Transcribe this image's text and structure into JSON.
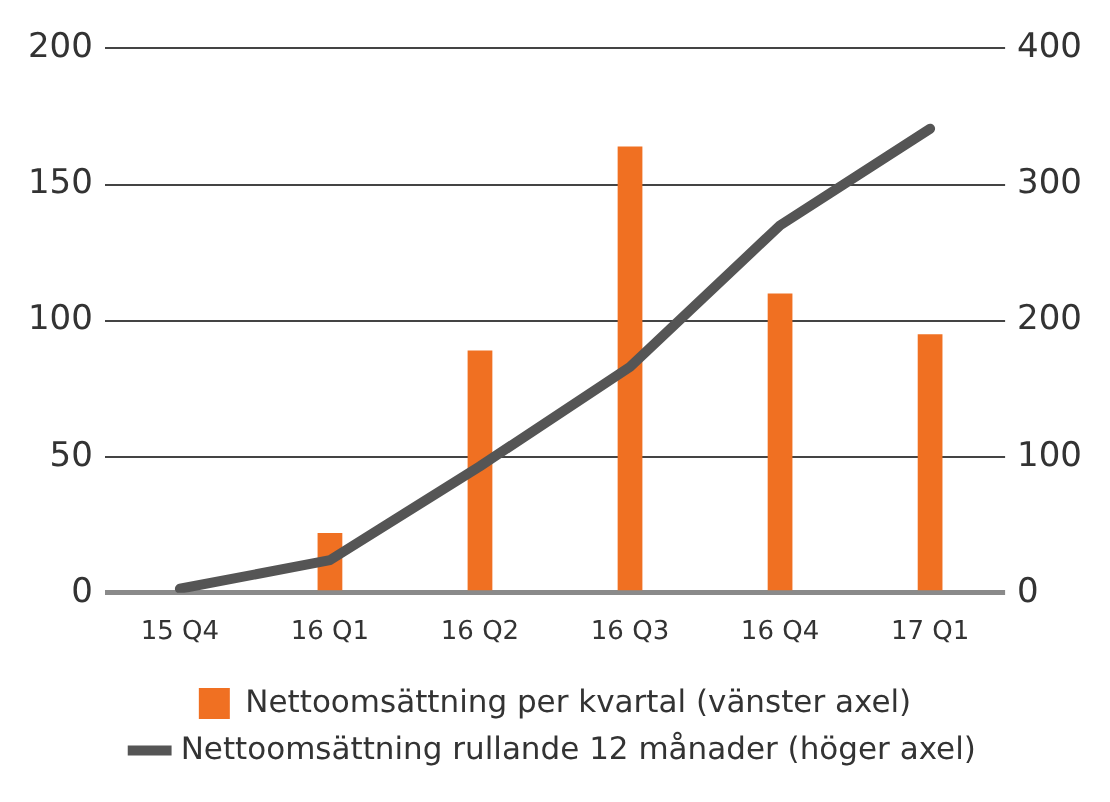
{
  "chart_data": {
    "type": "bar",
    "categories": [
      "15 Q4",
      "16 Q1",
      "16 Q2",
      "16 Q3",
      "16 Q4",
      "17 Q1"
    ],
    "series": [
      {
        "name": "Nettoomsättning per kvartal (vänster axel)",
        "color": "#f07022",
        "values": [
          0,
          22,
          89,
          164,
          110,
          95
        ]
      },
      {
        "name": "Nettoomsättning rullande 12 månader (höger axel)",
        "type": "line",
        "axis": "y2",
        "color": "#555555",
        "values": [
          3,
          24,
          93,
          166,
          270,
          341
        ]
      }
    ],
    "ylim": [
      0,
      200
    ],
    "yticks": [
      0,
      50,
      100,
      150,
      200
    ],
    "y2lim": [
      0,
      400
    ],
    "y2ticks": [
      0,
      100,
      200,
      300,
      400
    ],
    "grid": "y",
    "legend": "bottom",
    "marker": "none",
    "line_style": "solid"
  }
}
